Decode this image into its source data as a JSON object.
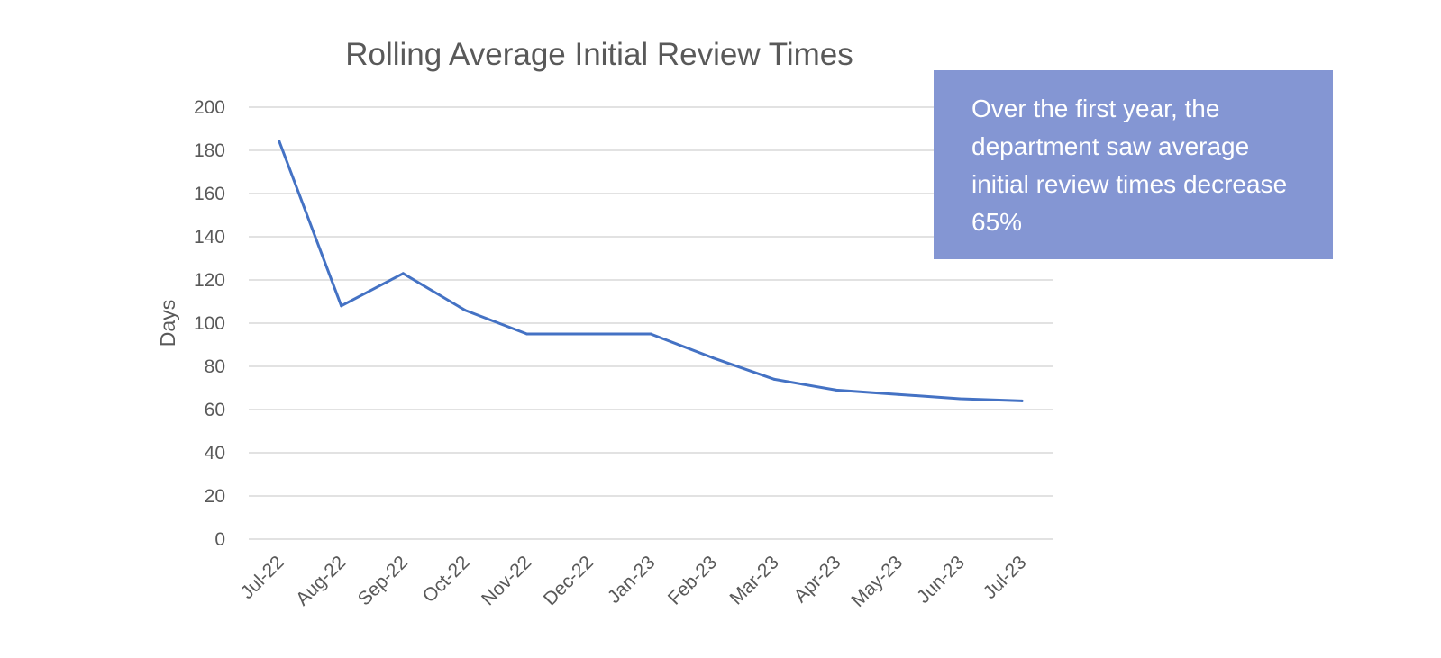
{
  "colors": {
    "series": "#4472C4",
    "callout_bg": "#8496D3",
    "callout_text": "#FFFFFF"
  },
  "callout": {
    "text": "Over the first year, the department saw average initial review times decrease 65%"
  },
  "chart_data": {
    "type": "line",
    "title": "Rolling Average Initial Review Times",
    "xlabel": "",
    "ylabel": "Days",
    "ylim": [
      0,
      200
    ],
    "yticks": [
      0,
      20,
      40,
      60,
      80,
      100,
      120,
      140,
      160,
      180,
      200
    ],
    "grid": true,
    "categories": [
      "Jul-22",
      "Aug-22",
      "Sep-22",
      "Oct-22",
      "Nov-22",
      "Dec-22",
      "Jan-23",
      "Feb-23",
      "Mar-23",
      "Apr-23",
      "May-23",
      "Jun-23",
      "Jul-23"
    ],
    "series": [
      {
        "name": "Rolling Average Initial Review Time",
        "values": [
          184,
          108,
          123,
          106,
          95,
          95,
          95,
          84,
          74,
          69,
          67,
          65,
          64
        ]
      }
    ]
  }
}
